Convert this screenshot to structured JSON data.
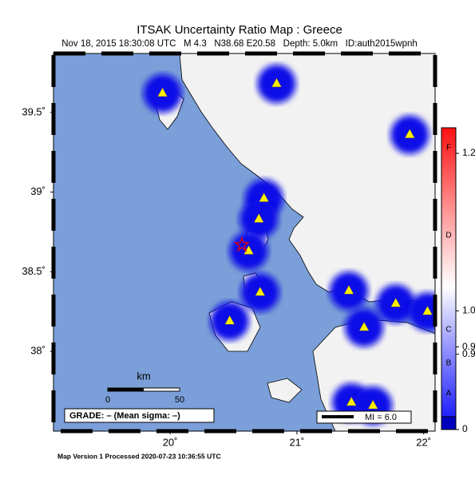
{
  "title": "ITSAK Uncertainty Ratio Map : Greece",
  "subtitle": "Nov 18, 2015 18:30:08 UTC   M 4.3   N38.68 E20.58   Depth: 5.0km   ID:auth2015wpnh",
  "map": {
    "lonlim": [
      19.08,
      22.09
    ],
    "latlim": [
      37.5,
      39.87
    ],
    "lat_ticks": [
      {
        "value": 39.5,
        "label": "39.5˚"
      },
      {
        "value": 39,
        "label": "39˚"
      },
      {
        "value": 38.5,
        "label": "38.5˚"
      },
      {
        "value": 38,
        "label": "38˚"
      }
    ],
    "lon_ticks": [
      {
        "value": 20,
        "label": "20˚"
      },
      {
        "value": 21,
        "label": "21˚"
      },
      {
        "value": 22,
        "label": "22˚"
      }
    ],
    "stations": {
      "lon": [
        19.94,
        20.84,
        21.89,
        20.74,
        20.7,
        20.62,
        20.71,
        20.47,
        21.41,
        21.53,
        21.78,
        22.03,
        21.43,
        21.6
      ],
      "lat": [
        39.62,
        39.68,
        39.36,
        38.96,
        38.83,
        38.63,
        38.37,
        38.19,
        38.38,
        38.15,
        38.3,
        38.25,
        37.68,
        37.66
      ]
    }
  },
  "colorbar": {
    "lim": [
      0,
      1.25
    ],
    "ticks": [
      {
        "value": 1.2,
        "label": "1.2"
      },
      {
        "value": 1,
        "label": "1.0"
      },
      {
        "value": 0.92,
        "label": "0.9"
      },
      {
        "value": 0.9,
        "label": "0.9"
      },
      0
    ],
    "grades": [
      "F",
      "D",
      "C",
      "B",
      "A"
    ]
  },
  "scale_bar": {
    "unit": "km",
    "labels": [
      "0",
      "50"
    ]
  },
  "grade_legend": "GRADE: – (Mean sigma: –)",
  "mi_legend": "MI = 6.0",
  "footer": "Map Version 1 Processed 2020-07-23 10:36:55 UTC"
}
